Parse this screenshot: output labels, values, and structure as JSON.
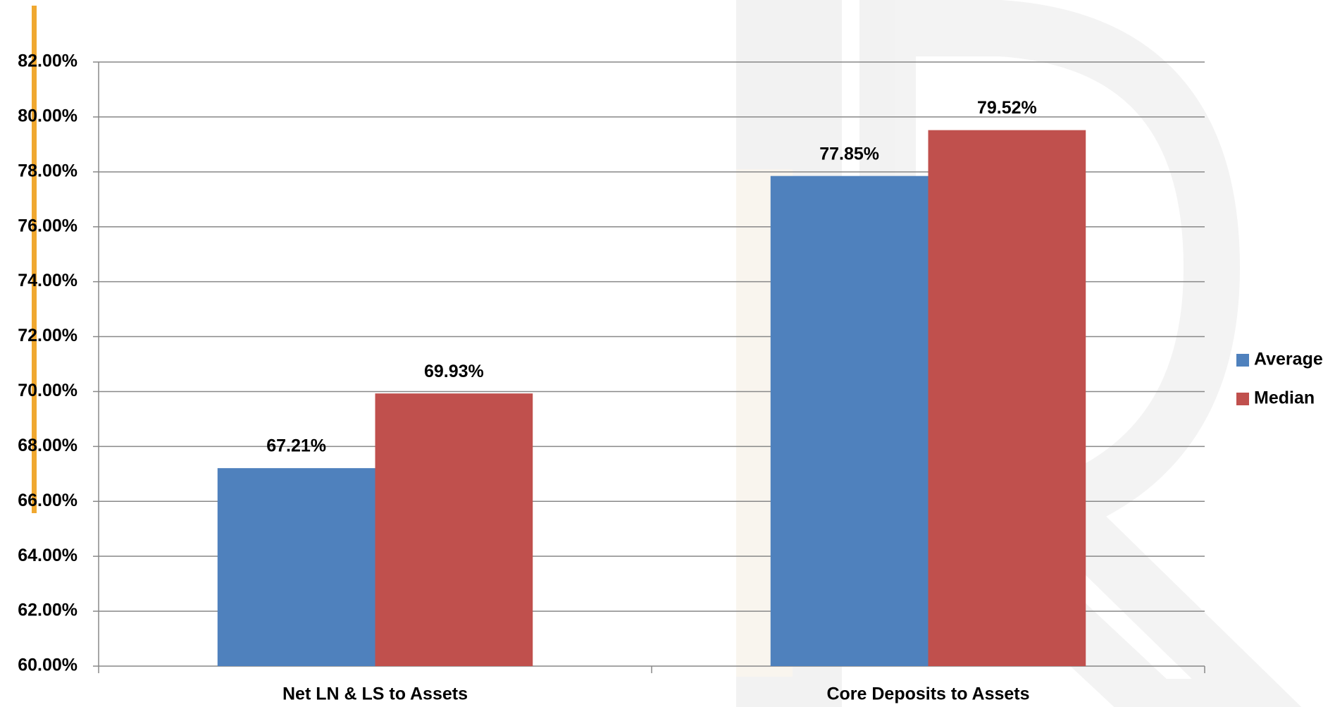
{
  "chart_data": {
    "type": "bar",
    "categories": [
      "Net LN & LS to Assets",
      "Core Deposits to Assets"
    ],
    "series": [
      {
        "name": "Average",
        "color": "#4f81bd",
        "values": [
          67.21,
          77.85
        ],
        "value_labels": [
          "67.21%",
          "77.85%"
        ]
      },
      {
        "name": "Median",
        "color": "#c0504d",
        "values": [
          69.93,
          79.52
        ],
        "value_labels": [
          "69.93%",
          "79.52%"
        ]
      }
    ],
    "ylim": [
      60,
      82
    ],
    "yticks": [
      {
        "value": 60,
        "label": "60.00%"
      },
      {
        "value": 62,
        "label": "62.00%"
      },
      {
        "value": 64,
        "label": "64.00%"
      },
      {
        "value": 66,
        "label": "66.00%"
      },
      {
        "value": 68,
        "label": "68.00%"
      },
      {
        "value": 70,
        "label": "70.00%"
      },
      {
        "value": 72,
        "label": "72.00%"
      },
      {
        "value": 74,
        "label": "74.00%"
      },
      {
        "value": 76,
        "label": "76.00%"
      },
      {
        "value": 78,
        "label": "78.00%"
      },
      {
        "value": 80,
        "label": "80.00%"
      },
      {
        "value": 82,
        "label": "82.00%"
      }
    ],
    "grid": true,
    "legend": "right"
  }
}
